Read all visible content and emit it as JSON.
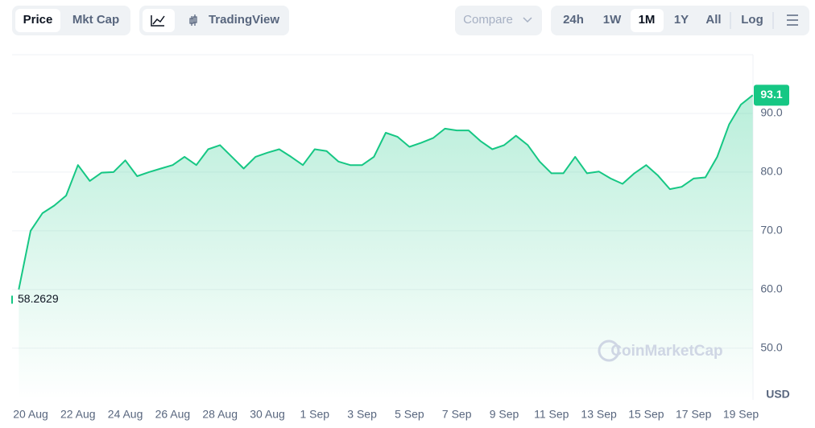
{
  "toolbar": {
    "modes": [
      "Price",
      "Mkt Cap"
    ],
    "chart_style": "TradingView",
    "compare": "Compare",
    "ranges": [
      "24h",
      "1W",
      "1M",
      "1Y",
      "All"
    ],
    "scale": "Log"
  },
  "chart_data": {
    "type": "line",
    "color": "#16c784",
    "x": [
      null,
      "20 Aug",
      null,
      null,
      null,
      "22 Aug",
      null,
      null,
      null,
      "24 Aug",
      null,
      null,
      null,
      "26 Aug",
      null,
      null,
      null,
      "28 Aug",
      null,
      null,
      null,
      "30 Aug",
      null,
      null,
      null,
      "1 Sep",
      null,
      null,
      null,
      "3 Sep",
      null,
      null,
      null,
      "5 Sep",
      null,
      null,
      null,
      "7 Sep",
      null,
      null,
      null,
      "9 Sep",
      null,
      null,
      null,
      "11 Sep",
      null,
      null,
      null,
      "13 Sep",
      null,
      null,
      null,
      "15 Sep",
      null,
      null,
      null,
      "17 Sep",
      null,
      null,
      null,
      "19 Sep",
      null
    ],
    "values": [
      60,
      70,
      73,
      74.3,
      76,
      81.2,
      78.5,
      79.9,
      80,
      82,
      79.3,
      80,
      80.6,
      81.2,
      82.6,
      81.2,
      83.9,
      84.6,
      82.6,
      80.6,
      82.6,
      83.3,
      83.9,
      82.6,
      81.2,
      83.9,
      83.6,
      81.8,
      81.2,
      81.2,
      82.6,
      86.7,
      86,
      84.3,
      85,
      85.8,
      87.4,
      87.1,
      87.1,
      85.3,
      83.9,
      84.6,
      86.2,
      84.6,
      81.8,
      79.8,
      79.8,
      82.6,
      79.8,
      80.1,
      78.9,
      78,
      79.8,
      81.2,
      79.4,
      77.1,
      77.5,
      78.9,
      79.1,
      82.6,
      88.1,
      91.5,
      93.1
    ],
    "ylim": [
      41.2,
      100
    ],
    "yticks": [
      {
        "value": 50,
        "label": "50.0"
      },
      {
        "value": 60,
        "label": "60.0"
      },
      {
        "value": 70,
        "label": "70.0"
      },
      {
        "value": 80,
        "label": "80.0"
      },
      {
        "value": 90,
        "label": "90.0"
      }
    ],
    "y_label": "USD",
    "grid": true,
    "last_value": {
      "value": 93.1,
      "label": "93.1"
    },
    "low_value": {
      "value": 58.2629,
      "label": "58.2629"
    },
    "watermark": "CoinMarketCap"
  }
}
